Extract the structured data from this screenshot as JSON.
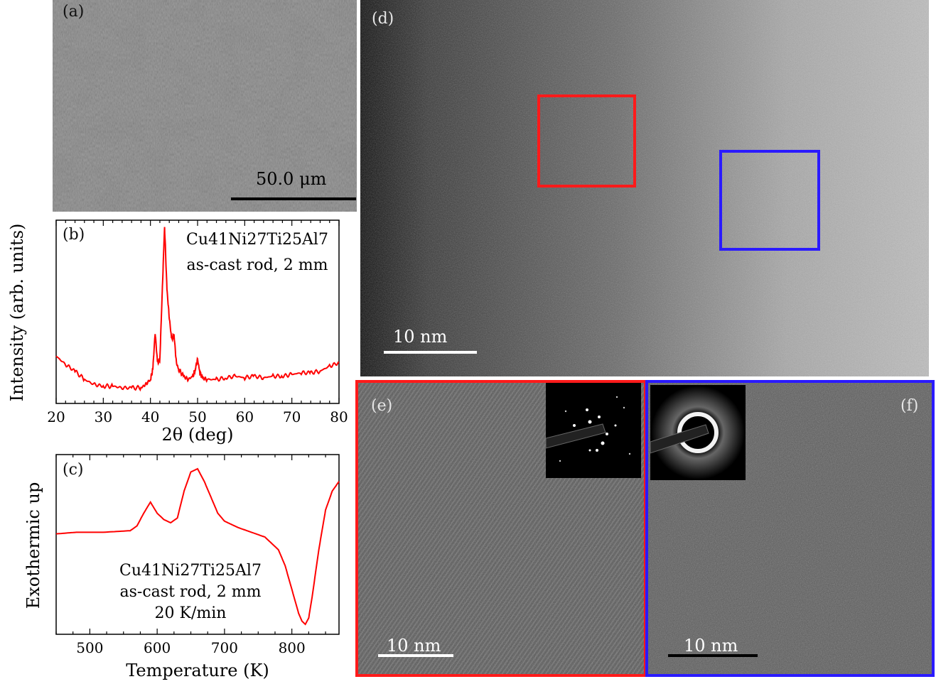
{
  "panel_a": {
    "label": "(a)",
    "scale_bar": "50.0 μm"
  },
  "panel_b": {
    "label": "(b)",
    "legend": [
      "Cu41Ni27Ti25Al7",
      "as-cast rod, 2 mm"
    ]
  },
  "panel_c": {
    "label": "(c)",
    "legend": [
      "Cu41Ni27Ti25Al7",
      "as-cast rod, 2 mm",
      "20 K/min"
    ]
  },
  "panel_d": {
    "label": "(d)",
    "scale_bar": "10 nm"
  },
  "panel_e": {
    "label": "(e)",
    "scale_bar": "10 nm"
  },
  "panel_f": {
    "label": "(f)",
    "scale_bar": "10 nm"
  },
  "colors": {
    "curve": "#ff0000",
    "box_e": "#ff1a1a",
    "box_f": "#2a1aff"
  },
  "chart_data": [
    {
      "type": "line",
      "panel": "(b)",
      "xlabel": "2θ (deg)",
      "ylabel": "Intensity (arb. units)",
      "xlim": [
        20,
        80
      ],
      "xticks": [
        20,
        30,
        40,
        50,
        60,
        70,
        80
      ],
      "grid": false,
      "series": [
        {
          "x": [
            20,
            22,
            24,
            26,
            28,
            30,
            32,
            34,
            36,
            38,
            39,
            40,
            40.5,
            41,
            41.5,
            42,
            42.5,
            43,
            43.5,
            44,
            44.5,
            45,
            45.5,
            46,
            47,
            48,
            49,
            49.5,
            50,
            50.5,
            51,
            52,
            54,
            56,
            58,
            60,
            62,
            64,
            66,
            68,
            70,
            72,
            74,
            76,
            78,
            80
          ],
          "y": [
            0.22,
            0.17,
            0.13,
            0.08,
            0.05,
            0.04,
            0.04,
            0.03,
            0.03,
            0.03,
            0.05,
            0.08,
            0.14,
            0.36,
            0.18,
            0.2,
            0.6,
            1.0,
            0.62,
            0.45,
            0.32,
            0.35,
            0.18,
            0.14,
            0.1,
            0.08,
            0.1,
            0.14,
            0.2,
            0.12,
            0.09,
            0.08,
            0.08,
            0.09,
            0.1,
            0.09,
            0.1,
            0.09,
            0.1,
            0.1,
            0.11,
            0.12,
            0.12,
            0.13,
            0.16,
            0.18
          ]
        }
      ]
    },
    {
      "type": "line",
      "panel": "(c)",
      "xlabel": "Temperature (K)",
      "ylabel": "Exothermic up",
      "xlim": [
        450,
        870
      ],
      "xticks": [
        500,
        600,
        700,
        800
      ],
      "grid": false,
      "series": [
        {
          "x": [
            450,
            480,
            520,
            560,
            570,
            580,
            590,
            600,
            610,
            620,
            630,
            640,
            650,
            660,
            670,
            680,
            690,
            700,
            720,
            740,
            760,
            780,
            790,
            800,
            810,
            815,
            820,
            825,
            830,
            840,
            850,
            860,
            870
          ],
          "y": [
            0.45,
            0.46,
            0.46,
            0.47,
            0.5,
            0.58,
            0.65,
            0.58,
            0.54,
            0.52,
            0.55,
            0.72,
            0.84,
            0.86,
            0.78,
            0.68,
            0.58,
            0.53,
            0.49,
            0.46,
            0.43,
            0.35,
            0.25,
            0.1,
            -0.05,
            -0.1,
            -0.12,
            -0.08,
            0.05,
            0.35,
            0.6,
            0.72,
            0.78
          ]
        }
      ]
    }
  ]
}
